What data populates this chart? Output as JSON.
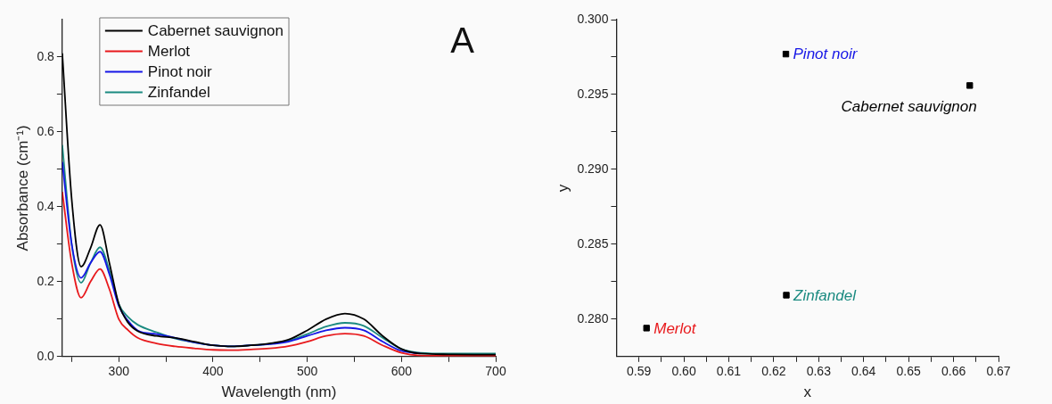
{
  "chart_data": [
    {
      "type": "line",
      "xlabel": "Wavelength (nm)",
      "ylabel": "Absorbance (cm⁻¹)",
      "annotations": [
        "A"
      ],
      "legend": "top left",
      "grid": false,
      "marker": "none",
      "line_style": "solid",
      "xlim": [
        240,
        700
      ],
      "ylim": [
        0,
        0.9
      ],
      "xticks": [
        {
          "value": 250,
          "label": null
        },
        300,
        {
          "value": 350,
          "label": null
        },
        400,
        {
          "value": 450,
          "label": null
        },
        500,
        {
          "value": 550,
          "label": null
        },
        600,
        {
          "value": 650,
          "label": null
        },
        700
      ],
      "yticks": [
        {
          "value": 0,
          "label": "0.0"
        },
        {
          "value": 0.1,
          "label": null
        },
        0.2,
        {
          "value": 0.3,
          "label": null
        },
        0.4,
        {
          "value": 0.5,
          "label": null
        },
        0.6,
        {
          "value": 0.7,
          "label": null
        },
        0.8
      ],
      "x": [
        240,
        250,
        260,
        270,
        280,
        290,
        300,
        310,
        320,
        340,
        360,
        380,
        400,
        420,
        440,
        460,
        480,
        500,
        520,
        540,
        560,
        580,
        600,
        620,
        650,
        700
      ],
      "series": [
        {
          "name": "Cabernet sauvignon",
          "color": "#000000",
          "values": [
            0.81,
            0.42,
            0.24,
            0.29,
            0.352,
            0.25,
            0.14,
            0.09,
            0.068,
            0.055,
            0.05,
            0.04,
            0.03,
            0.027,
            0.03,
            0.035,
            0.045,
            0.07,
            0.1,
            0.115,
            0.1,
            0.055,
            0.02,
            0.008,
            0.006,
            0.005
          ]
        },
        {
          "name": "Merlot",
          "color": "#e8191c",
          "values": [
            0.44,
            0.25,
            0.157,
            0.2,
            0.234,
            0.18,
            0.1,
            0.07,
            0.05,
            0.035,
            0.027,
            0.022,
            0.018,
            0.017,
            0.019,
            0.022,
            0.028,
            0.04,
            0.055,
            0.061,
            0.055,
            0.03,
            0.01,
            0.003,
            0.002,
            0.002
          ]
        },
        {
          "name": "Pinot noir",
          "color": "#1515e6",
          "values": [
            0.52,
            0.3,
            0.21,
            0.25,
            0.28,
            0.22,
            0.135,
            0.095,
            0.07,
            0.06,
            0.05,
            0.038,
            0.03,
            0.027,
            0.03,
            0.033,
            0.04,
            0.055,
            0.07,
            0.077,
            0.07,
            0.04,
            0.015,
            0.008,
            null,
            null
          ]
        },
        {
          "name": "Zinfandel",
          "color": "#1a8a80",
          "values": [
            0.565,
            0.3,
            0.197,
            0.25,
            0.292,
            0.23,
            0.14,
            0.105,
            0.085,
            0.065,
            0.048,
            0.038,
            0.03,
            0.027,
            0.03,
            0.034,
            0.042,
            0.06,
            0.08,
            0.09,
            0.082,
            0.05,
            0.02,
            0.01,
            0.008,
            0.008
          ]
        }
      ]
    },
    {
      "type": "scatter",
      "xlabel": "x",
      "ylabel": "y",
      "grid": false,
      "legend": false,
      "marker": "square",
      "xlim": [
        0.585,
        0.67
      ],
      "ylim": [
        0.2775,
        0.3
      ],
      "xticks": [
        {
          "value": 0.59,
          "label": "0.59"
        },
        {
          "value": 0.595,
          "label": null
        },
        {
          "value": 0.6,
          "label": "0.60"
        },
        {
          "value": 0.605,
          "label": null
        },
        {
          "value": 0.61,
          "label": "0.61"
        },
        {
          "value": 0.615,
          "label": null
        },
        {
          "value": 0.62,
          "label": "0.62"
        },
        {
          "value": 0.625,
          "label": null
        },
        {
          "value": 0.63,
          "label": "0.63"
        },
        {
          "value": 0.635,
          "label": null
        },
        {
          "value": 0.64,
          "label": "0.64"
        },
        {
          "value": 0.645,
          "label": null
        },
        {
          "value": 0.65,
          "label": "0.65"
        },
        {
          "value": 0.655,
          "label": null
        },
        {
          "value": 0.66,
          "label": "0.66"
        },
        {
          "value": 0.665,
          "label": null
        },
        {
          "value": 0.67,
          "label": "0.67"
        }
      ],
      "yticks": [
        {
          "value": 0.28,
          "label": "0.280"
        },
        {
          "value": 0.2825,
          "label": null
        },
        {
          "value": 0.285,
          "label": "0.285"
        },
        {
          "value": 0.2875,
          "label": null
        },
        {
          "value": 0.29,
          "label": "0.290"
        },
        {
          "value": 0.2925,
          "label": null
        },
        {
          "value": 0.295,
          "label": "0.295"
        },
        {
          "value": 0.2975,
          "label": null
        },
        {
          "value": 0.3,
          "label": "0.300"
        }
      ],
      "series": [
        {
          "color": "#000000",
          "x": [
            0.6636,
            0.5917,
            0.6227,
            0.6228
          ],
          "values": [
            0.2956,
            0.2794,
            0.2977,
            0.2816
          ]
        }
      ],
      "annotations": [
        {
          "text": "Cabernet sauvignon",
          "x": 0.6636,
          "y": 0.2956
        },
        {
          "text": "Merlot",
          "x": 0.5917,
          "y": 0.2794
        },
        {
          "text": "Pinot noir",
          "x": 0.6227,
          "y": 0.2977
        },
        {
          "text": "Zinfandel",
          "x": 0.6228,
          "y": 0.2816
        }
      ]
    }
  ]
}
